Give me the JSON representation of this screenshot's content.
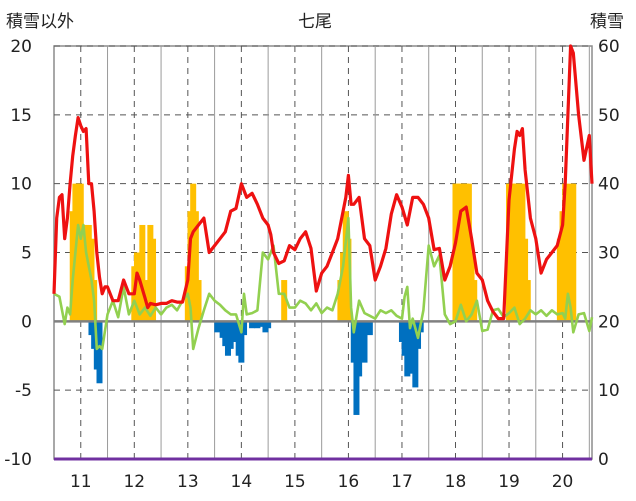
{
  "chart_data": {
    "type": "bar+line",
    "title": "七尾",
    "y_left_label": "積雪以外",
    "y_right_label": "積雪",
    "y_left_range": [
      -10,
      20
    ],
    "y_right_range": [
      0,
      60
    ],
    "y_left_ticks": [
      "20",
      "15",
      "10",
      "5",
      "0",
      "-5",
      "-10"
    ],
    "y_right_ticks": [
      "60",
      "50",
      "40",
      "30",
      "20",
      "10",
      "0"
    ],
    "x_range": [
      10.5,
      20.55
    ],
    "x_ticks": [
      "11",
      "12",
      "13",
      "14",
      "15",
      "16",
      "17",
      "18",
      "19",
      "20"
    ],
    "grid": true,
    "colors": {
      "red": "#ee1111",
      "green": "#92d050",
      "orange": "#ffc000",
      "blue": "#0070c0",
      "purple": "#7030a0",
      "grid": "#555555",
      "zero": "#808080"
    },
    "series": [
      {
        "type": "line",
        "color": "#ee1111",
        "axis": "left",
        "x": [
          10.5,
          10.55,
          10.6,
          10.65,
          10.7,
          10.75,
          10.8,
          10.85,
          10.9,
          10.95,
          11.0,
          11.05,
          11.1,
          11.15,
          11.2,
          11.25,
          11.3,
          11.35,
          11.4,
          11.45,
          11.5,
          11.6,
          11.7,
          11.8,
          11.9,
          12.0,
          12.05,
          12.1,
          12.2,
          12.25,
          12.3,
          12.4,
          12.5,
          12.6,
          12.7,
          12.8,
          12.9,
          13.0,
          13.05,
          13.1,
          13.2,
          13.3,
          13.4,
          13.5,
          13.6,
          13.7,
          13.8,
          13.9,
          14.0,
          14.05,
          14.1,
          14.2,
          14.3,
          14.4,
          14.5,
          14.55,
          14.6,
          14.7,
          14.8,
          14.9,
          15.0,
          15.1,
          15.2,
          15.3,
          15.4,
          15.5,
          15.6,
          15.7,
          15.8,
          15.9,
          15.95,
          16.0,
          16.05,
          16.1,
          16.2,
          16.3,
          16.4,
          16.5,
          16.6,
          16.7,
          16.8,
          16.9,
          17.0,
          17.1,
          17.2,
          17.3,
          17.4,
          17.5,
          17.6,
          17.7,
          17.8,
          17.9,
          18.0,
          18.1,
          18.2,
          18.3,
          18.4,
          18.5,
          18.6,
          18.7,
          18.8,
          18.9,
          19.0,
          19.1,
          19.15,
          19.2,
          19.25,
          19.3,
          19.4,
          19.5,
          19.6,
          19.7,
          19.8,
          19.9,
          20.0,
          20.05,
          20.1,
          20.15,
          20.2,
          20.3,
          20.4,
          20.5,
          20.55
        ],
        "values": [
          2,
          7.5,
          9,
          9.2,
          6,
          7.5,
          10,
          12,
          13.5,
          14.8,
          14.2,
          13.8,
          14,
          10,
          10,
          8,
          5,
          3.2,
          2,
          2.5,
          2.5,
          1.5,
          1.5,
          3,
          2,
          2,
          3.5,
          3,
          1.7,
          1,
          1.3,
          1.2,
          1.3,
          1.3,
          1.5,
          1.4,
          1.4,
          3,
          6,
          6.5,
          7,
          7.5,
          5,
          5.5,
          6,
          6.5,
          8,
          8.2,
          10,
          9.5,
          9,
          9.3,
          8.5,
          7.5,
          7,
          6.3,
          5,
          4.2,
          4.4,
          5.5,
          5.2,
          6,
          6.5,
          5.3,
          2.2,
          3.5,
          4,
          5,
          6,
          8,
          9,
          10.6,
          8.5,
          8.5,
          9,
          6,
          5.5,
          3,
          4,
          5.3,
          7.8,
          9.2,
          8.3,
          7,
          9,
          9,
          8.5,
          7.5,
          5.2,
          5.3,
          3,
          4,
          5.7,
          8,
          8.3,
          6,
          3.5,
          3,
          1.5,
          0.7,
          0.2,
          0.2,
          8.8,
          12.5,
          13.8,
          13.5,
          14,
          11,
          7.5,
          6,
          3.5,
          4.5,
          5,
          5.5,
          7,
          10,
          15,
          20,
          19.5,
          15,
          11.7,
          13.5,
          10
        ]
      },
      {
        "type": "line",
        "color": "#92d050",
        "axis": "left",
        "x": [
          10.5,
          10.6,
          10.7,
          10.75,
          10.8,
          10.85,
          10.9,
          10.95,
          11.0,
          11.05,
          11.1,
          11.15,
          11.2,
          11.25,
          11.3,
          11.35,
          11.4,
          11.5,
          11.6,
          11.7,
          11.8,
          11.9,
          12.0,
          12.1,
          12.2,
          12.3,
          12.4,
          12.5,
          12.6,
          12.7,
          12.8,
          12.9,
          13.0,
          13.05,
          13.1,
          13.2,
          13.3,
          13.4,
          13.5,
          13.6,
          13.7,
          13.8,
          13.9,
          14.0,
          14.05,
          14.1,
          14.2,
          14.3,
          14.4,
          14.5,
          14.6,
          14.7,
          14.8,
          14.9,
          15.0,
          15.1,
          15.2,
          15.3,
          15.4,
          15.5,
          15.6,
          15.7,
          15.8,
          15.9,
          16.0,
          16.05,
          16.1,
          16.2,
          16.3,
          16.4,
          16.5,
          16.6,
          16.7,
          16.8,
          16.9,
          17.0,
          17.05,
          17.1,
          17.15,
          17.2,
          17.3,
          17.4,
          17.5,
          17.6,
          17.7,
          17.8,
          17.9,
          18.0,
          18.1,
          18.2,
          18.3,
          18.4,
          18.5,
          18.6,
          18.7,
          18.8,
          18.9,
          19.0,
          19.1,
          19.2,
          19.3,
          19.4,
          19.5,
          19.6,
          19.7,
          19.8,
          19.9,
          20.0,
          20.05,
          20.1,
          20.15,
          20.2,
          20.3,
          20.4,
          20.5,
          20.55
        ],
        "values": [
          2,
          1.8,
          -0.2,
          1,
          0.5,
          3,
          5,
          7,
          6,
          7,
          5,
          4,
          3,
          1.5,
          -2,
          -1.8,
          -2,
          0.5,
          1.5,
          0.3,
          2.5,
          0.5,
          1.5,
          0.5,
          1,
          0.4,
          1,
          0.5,
          1,
          1.2,
          0.8,
          1.5,
          2,
          1,
          -2,
          -0.5,
          0.8,
          2,
          1.5,
          1.2,
          0.8,
          0.5,
          0.5,
          -0.8,
          2,
          0.5,
          0.6,
          0.8,
          5,
          4.5,
          5.5,
          2,
          2,
          1,
          1,
          1.5,
          1.3,
          0.8,
          1.3,
          0.6,
          1,
          0.8,
          2,
          4,
          7.5,
          1,
          -0.8,
          1.5,
          0.6,
          0.4,
          0.2,
          0.8,
          0.6,
          0.8,
          0.4,
          0.2,
          1.8,
          2.5,
          -0.5,
          0.2,
          -1.2,
          0.8,
          5.5,
          4,
          4.8,
          0.5,
          -0.2,
          0,
          1.2,
          0,
          0.5,
          1.5,
          -0.7,
          -0.6,
          0.8,
          0.9,
          0.3,
          0.6,
          1,
          -0.2,
          0.2,
          0.8,
          0.5,
          0.8,
          0.4,
          0.8,
          0.5,
          0.6,
          0.2,
          2,
          1,
          -0.8,
          0.5,
          0.6,
          -0.7,
          0.3
        ]
      },
      {
        "type": "bar",
        "color": "#ffc000",
        "axis": "left",
        "x": [
          10.85,
          10.9,
          10.95,
          11.0,
          11.05,
          11.1,
          11.15,
          11.2,
          11.25,
          12.0,
          12.05,
          12.1,
          12.15,
          12.2,
          12.3,
          12.35,
          13.0,
          13.05,
          13.1,
          13.15,
          13.2,
          14.8,
          15.85,
          15.9,
          15.95,
          16.0,
          18.0,
          18.05,
          18.1,
          18.15,
          18.2,
          18.25,
          18.3,
          18.35,
          19.0,
          19.05,
          19.1,
          19.15,
          19.2,
          19.25,
          19.3,
          19.35,
          19.95,
          20.0,
          20.05,
          20.1,
          20.15,
          20.2
        ],
        "values": [
          8,
          10,
          10,
          10,
          7,
          7,
          7,
          6,
          3,
          4,
          5,
          5,
          7,
          3,
          7,
          6,
          4,
          8,
          10,
          8,
          3,
          3,
          3,
          5,
          8,
          6,
          10,
          10,
          10,
          10,
          10,
          10,
          5,
          3,
          10,
          10,
          10,
          10,
          10,
          10,
          6,
          3,
          6,
          8,
          10,
          9,
          10,
          10
        ]
      },
      {
        "type": "bar",
        "color": "#0070c0",
        "axis": "left",
        "x": [
          11.2,
          11.25,
          11.3,
          11.35,
          13.55,
          13.6,
          13.65,
          13.7,
          13.75,
          13.8,
          13.85,
          13.9,
          13.95,
          14.0,
          14.05,
          14.2,
          14.3,
          14.4,
          14.45,
          14.5,
          16.1,
          16.15,
          16.2,
          16.25,
          16.3,
          16.35,
          16.4,
          17.0,
          17.05,
          17.1,
          17.15,
          17.2,
          17.25,
          17.3,
          17.35
        ],
        "values": [
          -1,
          -2,
          -3.5,
          -4.5,
          -0.8,
          -0.5,
          -1.2,
          -1.8,
          -2.5,
          -2,
          -1.5,
          -1.2,
          -2.5,
          -3,
          -1,
          -0.5,
          -0.5,
          -0.4,
          -0.8,
          -0.5,
          -3,
          -6.8,
          -4,
          -1.5,
          -3,
          -0.5,
          -1,
          -1.5,
          -2.5,
          -4,
          -2.8,
          -3.8,
          -4.8,
          -2,
          -0.8
        ]
      }
    ]
  }
}
